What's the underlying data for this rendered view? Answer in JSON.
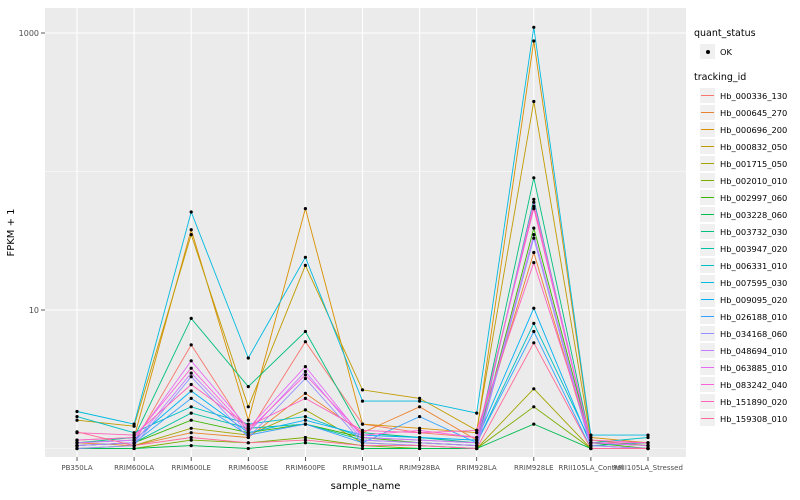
{
  "chart_data": {
    "type": "line",
    "title": "",
    "xlabel": "sample_name",
    "ylabel": "FPKM + 1",
    "y_scale": "log10",
    "y_major_breaks": [
      10,
      1000
    ],
    "y_minor_breaks": [
      1,
      100
    ],
    "y_tick_labels": [
      "10",
      "1000"
    ],
    "grid": true,
    "point_color": "#000000",
    "panel_bg": "#EBEBEB",
    "legend": {
      "position": "right",
      "quant_status_title": "quant_status",
      "quant_status_items": [
        "OK"
      ],
      "tracking_title": "tracking_id"
    },
    "categories": [
      "PB350LA",
      "RRIM600LA",
      "RRIM600LE",
      "RRIM600SE",
      "RRIM600PE",
      "RRIM901LA",
      "RRIM928BA",
      "RRIM928LA",
      "RRIM928LE",
      "RRII105LA_Control",
      "RRII105LA_Stressed"
    ],
    "series": [
      {
        "name": "Hb_000336_130",
        "color": "#F8766D",
        "values": [
          1.05,
          1.1,
          5.6,
          1.3,
          5.9,
          1.5,
          1.3,
          1.2,
          56,
          1.1,
          1.05
        ]
      },
      {
        "name": "Hb_000645_270",
        "color": "#EA8331",
        "values": [
          1.1,
          1.05,
          1.3,
          1.2,
          2.5,
          1.3,
          2.0,
          1.15,
          26,
          1.05,
          1.0
        ]
      },
      {
        "name": "Hb_000696_200",
        "color": "#D89000",
        "values": [
          1.15,
          1.2,
          38.0,
          1.6,
          54.0,
          1.5,
          1.4,
          1.3,
          875,
          1.2,
          1.1
        ]
      },
      {
        "name": "Hb_000832_050",
        "color": "#C09B00",
        "values": [
          1.6,
          1.45,
          35.0,
          2.0,
          21.0,
          2.65,
          2.3,
          1.35,
          320,
          1.15,
          1.05
        ]
      },
      {
        "name": "Hb_001715_050",
        "color": "#A3A500",
        "values": [
          1.0,
          1.05,
          1.4,
          1.25,
          1.9,
          1.1,
          1.05,
          1.0,
          2.7,
          1.0,
          1.0
        ]
      },
      {
        "name": "Hb_002010_010",
        "color": "#7CAE00",
        "values": [
          1.0,
          1.0,
          1.15,
          1.1,
          1.2,
          1.05,
          1.0,
          1.0,
          2.0,
          1.0,
          1.0
        ]
      },
      {
        "name": "Hb_002997_060",
        "color": "#39B600",
        "values": [
          1.05,
          1.1,
          1.6,
          1.3,
          1.5,
          1.2,
          1.1,
          1.05,
          39,
          1.1,
          1.0
        ]
      },
      {
        "name": "Hb_003228_060",
        "color": "#00BB4E",
        "values": [
          1.0,
          1.0,
          1.05,
          1.0,
          1.1,
          1.0,
          1.0,
          1.0,
          1.5,
          1.0,
          1.0
        ]
      },
      {
        "name": "Hb_003732_030",
        "color": "#00BF7D",
        "values": [
          1.1,
          1.2,
          8.7,
          2.8,
          7.0,
          1.3,
          1.2,
          1.1,
          90,
          1.1,
          1.05
        ]
      },
      {
        "name": "Hb_003947_020",
        "color": "#00C1A3",
        "values": [
          1.05,
          1.1,
          1.8,
          1.4,
          1.5,
          1.15,
          1.1,
          1.05,
          63,
          1.05,
          1.1
        ]
      },
      {
        "name": "Hb_006331_010",
        "color": "#00BFC4",
        "values": [
          1.7,
          1.3,
          2.0,
          1.5,
          1.7,
          1.2,
          1.15,
          1.1,
          8.0,
          1.1,
          1.2
        ]
      },
      {
        "name": "Hb_007595_030",
        "color": "#00BAE0",
        "values": [
          1.85,
          1.5,
          51.0,
          4.5,
          24.0,
          2.2,
          2.2,
          1.8,
          1100,
          1.25,
          1.25
        ]
      },
      {
        "name": "Hb_009095_020",
        "color": "#00B0F6",
        "values": [
          1.1,
          1.15,
          2.6,
          1.3,
          1.6,
          1.25,
          1.2,
          1.15,
          10.3,
          1.05,
          1.0
        ]
      },
      {
        "name": "Hb_026188_010",
        "color": "#35A2FF",
        "values": [
          1.05,
          1.1,
          2.3,
          1.25,
          1.5,
          1.1,
          1.7,
          1.1,
          7.0,
          1.0,
          1.0
        ]
      },
      {
        "name": "Hb_034168_060",
        "color": "#9590FF",
        "values": [
          1.0,
          1.05,
          3.3,
          1.2,
          3.2,
          1.1,
          1.05,
          1.0,
          33,
          1.0,
          1.0
        ]
      },
      {
        "name": "Hb_048694_010",
        "color": "#C77CFF",
        "values": [
          1.05,
          1.1,
          3.5,
          1.3,
          3.6,
          1.15,
          1.1,
          1.05,
          35,
          1.05,
          1.0
        ]
      },
      {
        "name": "Hb_063885_010",
        "color": "#E76BF3",
        "values": [
          1.1,
          1.15,
          4.3,
          1.4,
          3.9,
          1.2,
          1.15,
          1.1,
          60,
          1.1,
          1.05
        ]
      },
      {
        "name": "Hb_083242_040",
        "color": "#FA62DB",
        "values": [
          1.15,
          1.2,
          3.8,
          1.35,
          3.4,
          1.25,
          1.35,
          1.2,
          54,
          1.1,
          1.1
        ]
      },
      {
        "name": "Hb_151890_020",
        "color": "#FF62BC",
        "values": [
          1.3,
          1.25,
          2.9,
          1.45,
          2.3,
          1.35,
          1.3,
          1.35,
          22,
          1.15,
          1.1
        ]
      },
      {
        "name": "Hb_159308_010",
        "color": "#FF6A98",
        "values": [
          1.32,
          1.05,
          1.2,
          1.1,
          1.15,
          1.05,
          1.05,
          1.0,
          5.8,
          1.0,
          1.0
        ]
      }
    ]
  }
}
